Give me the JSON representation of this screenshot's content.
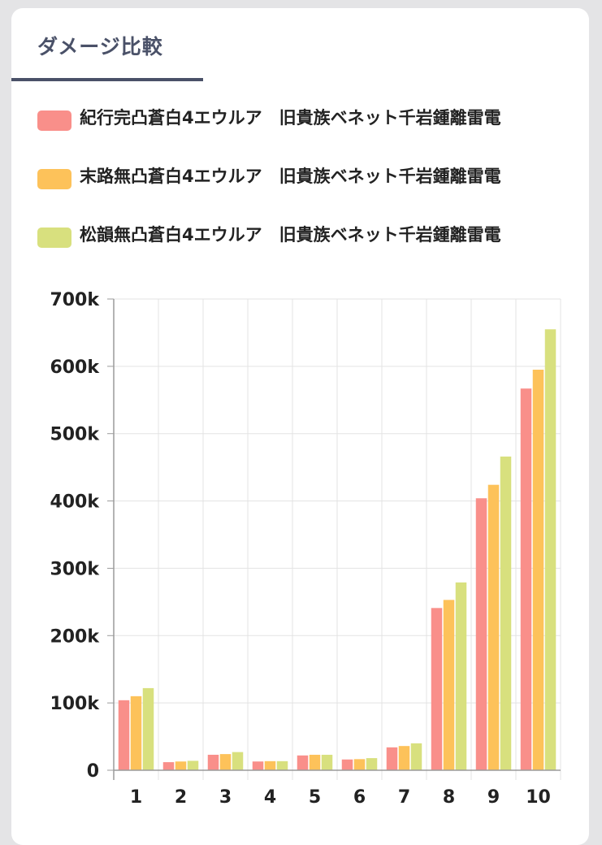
{
  "header": {
    "title": "ダメージ比較"
  },
  "colors": {
    "series": [
      "#f98f8a",
      "#fdc25a",
      "#d8e07e"
    ],
    "grid": "#e3e3e3",
    "axis": "#9b9b9b"
  },
  "chart_data": {
    "type": "bar",
    "categories": [
      "1",
      "2",
      "3",
      "4",
      "5",
      "6",
      "7",
      "8",
      "9",
      "10"
    ],
    "series": [
      {
        "name": "紀行完凸蒼白4エウルア　旧貴族ベネット千岩鍾離雷電",
        "values": [
          104000,
          12000,
          23000,
          13000,
          22000,
          16000,
          34000,
          241000,
          404000,
          567000
        ]
      },
      {
        "name": "末路無凸蒼白4エウルア　旧貴族ベネット千岩鍾離雷電",
        "values": [
          110000,
          13000,
          24000,
          13500,
          23000,
          16500,
          36000,
          253000,
          424000,
          595000
        ]
      },
      {
        "name": "松韻無凸蒼白4エウルア　旧貴族ベネット千岩鍾離雷電",
        "values": [
          122000,
          14000,
          27000,
          13500,
          23000,
          18000,
          40000,
          279000,
          466000,
          655000
        ]
      }
    ],
    "ylim": [
      0,
      700000
    ],
    "yticks": [
      "0",
      "100k",
      "200k",
      "300k",
      "400k",
      "500k",
      "600k",
      "700k"
    ],
    "xlabel": "",
    "ylabel": "",
    "grid": true,
    "legend": "top"
  }
}
